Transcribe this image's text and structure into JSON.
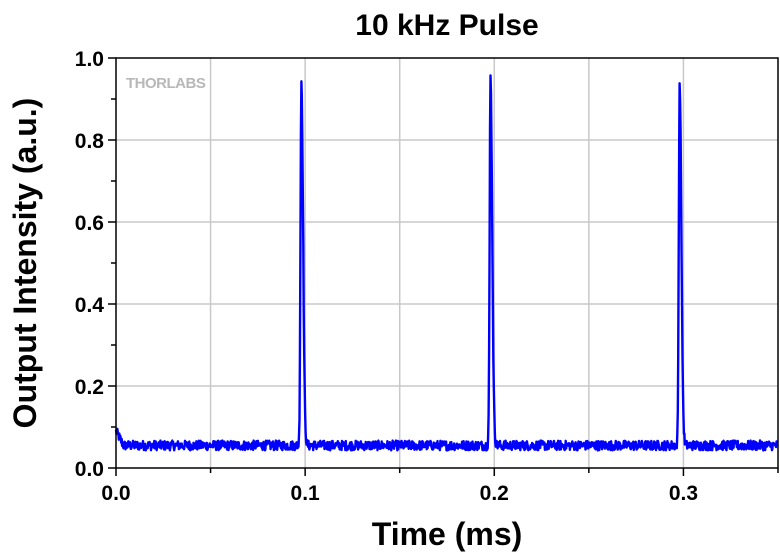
{
  "chart_data": {
    "type": "line",
    "title": "10 kHz Pulse",
    "xlabel": "Time (ms)",
    "ylabel": "Output Intensity (a.u.)",
    "xlim": [
      0.0,
      0.35
    ],
    "ylim": [
      0.0,
      1.0
    ],
    "x_ticks": [
      0.0,
      0.1,
      0.2,
      0.3
    ],
    "x_tick_labels": [
      "0.0",
      "0.1",
      "0.2",
      "0.3"
    ],
    "y_ticks": [
      0.0,
      0.2,
      0.4,
      0.6,
      0.8,
      1.0
    ],
    "y_tick_labels": [
      "0.0",
      "0.2",
      "0.4",
      "0.6",
      "0.8",
      "1.0"
    ],
    "grid": true,
    "legend": "none",
    "watermark": "THORLABS",
    "series": [
      {
        "color": "#0000ff",
        "baseline": 0.055,
        "noise_amplitude": 0.012,
        "pulses": [
          {
            "t": 0.098,
            "peak": 0.945
          },
          {
            "t": 0.198,
            "peak": 0.953
          },
          {
            "t": 0.298,
            "peak": 0.938
          }
        ]
      }
    ]
  }
}
